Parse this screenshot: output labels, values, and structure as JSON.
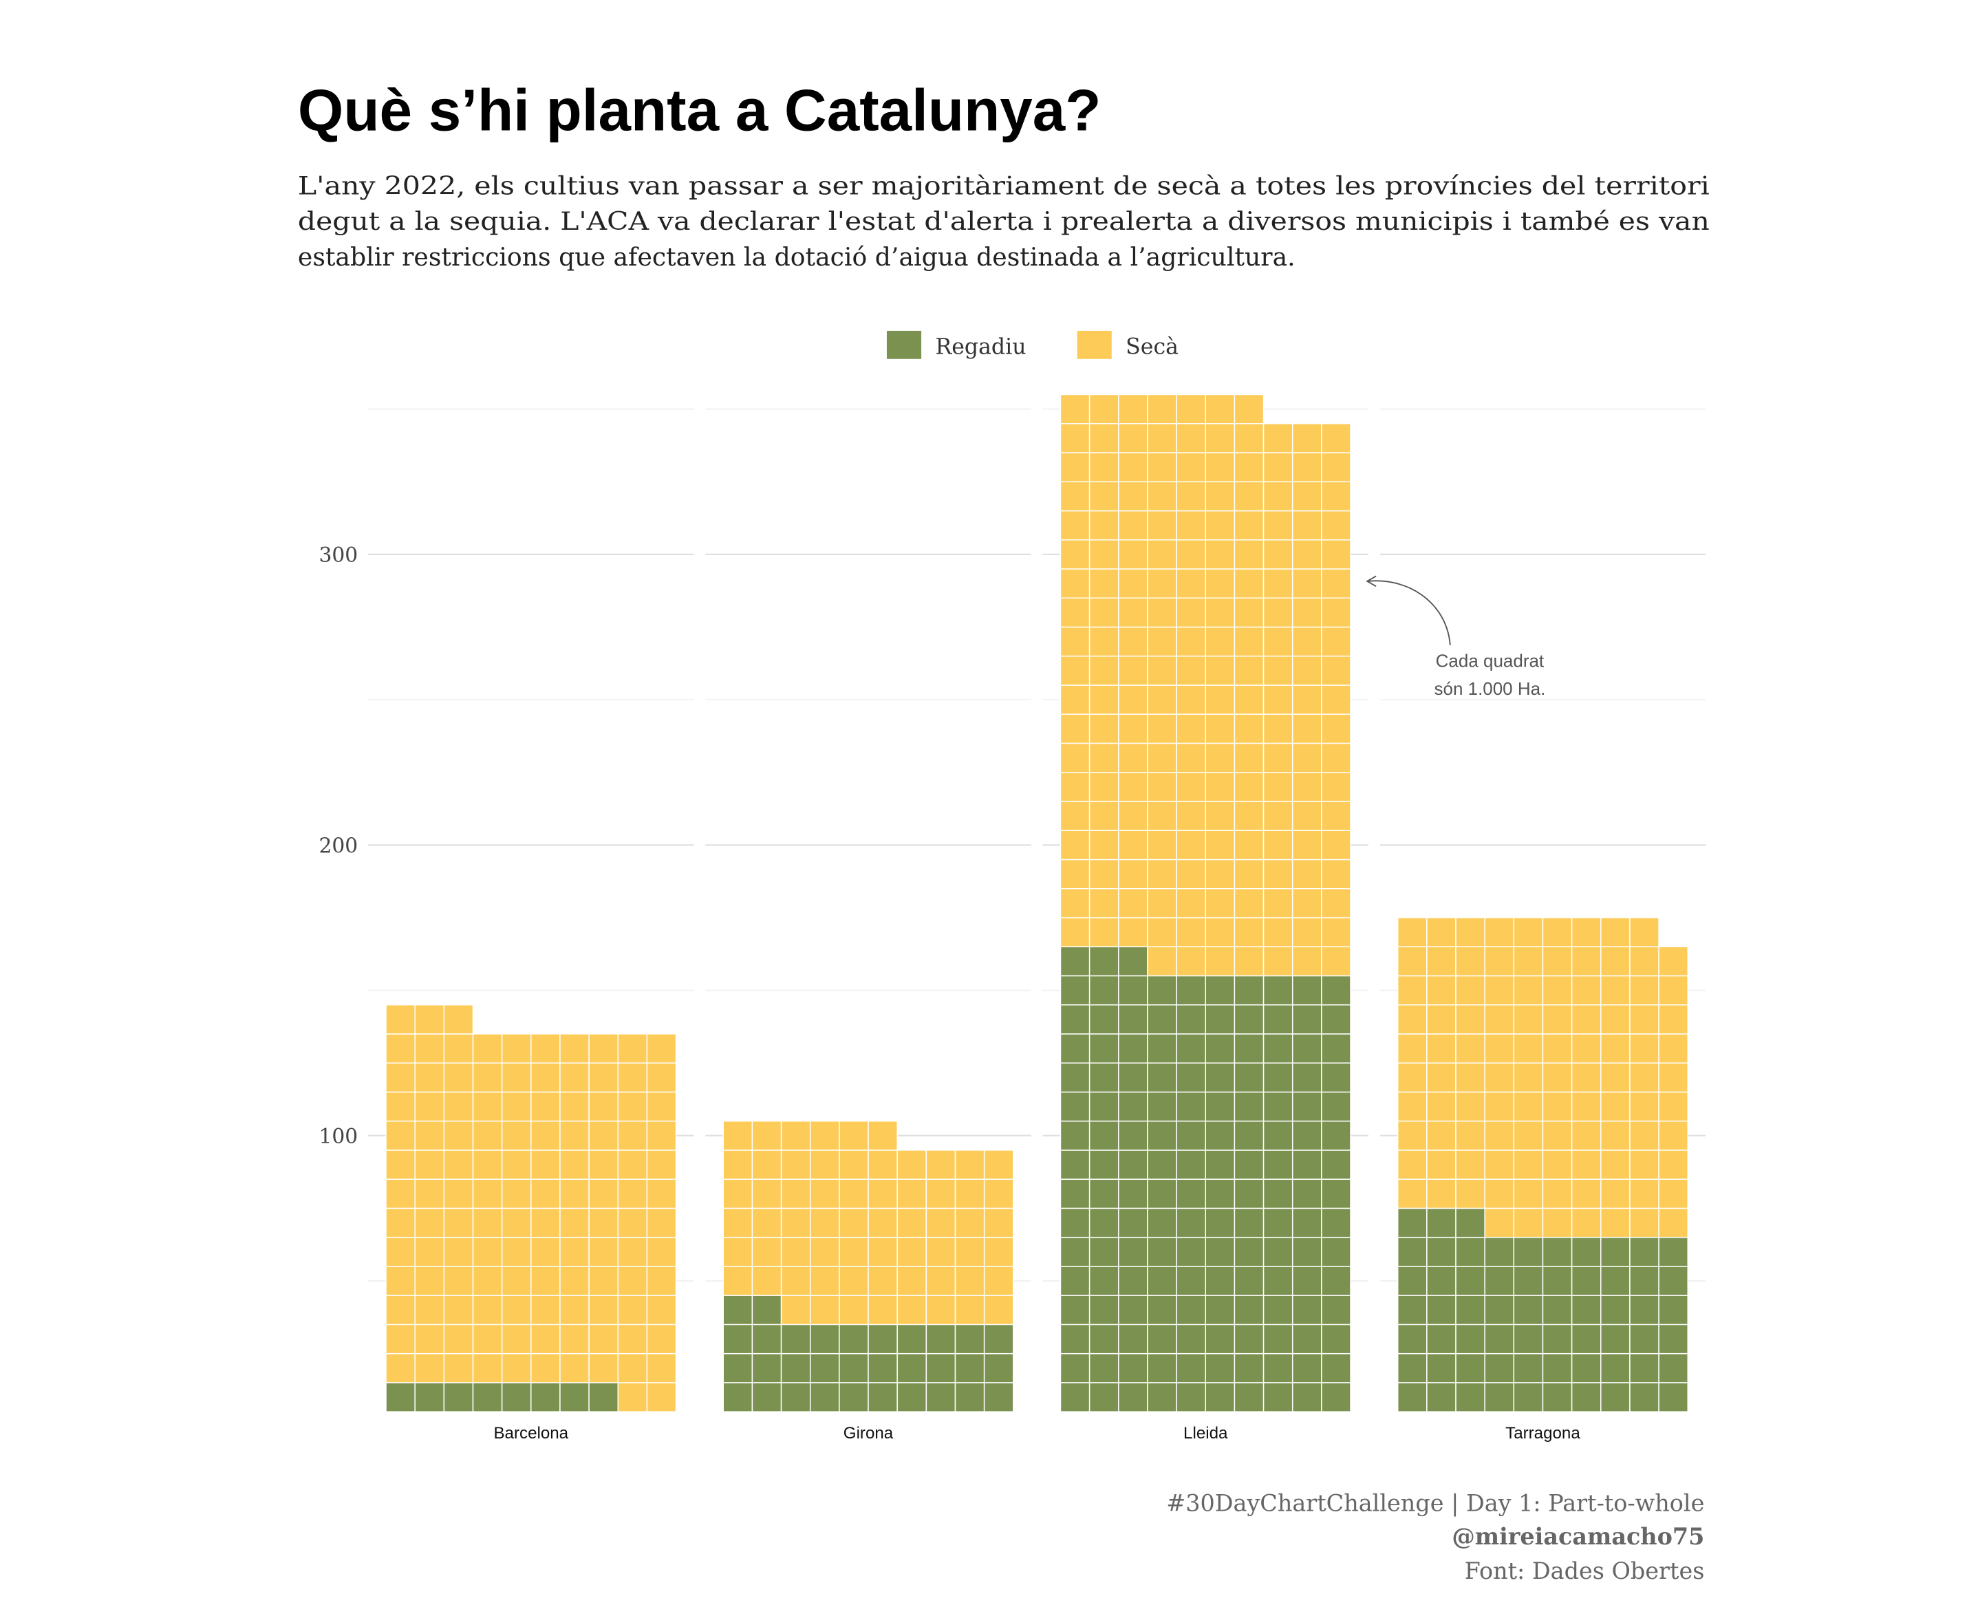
{
  "chart_data": {
    "type": "waffle",
    "title": "Què s’hi planta a Catalunya?",
    "subtitle": [
      "L'any 2022, els cultius van passar a ser majoritàriament de secà a totes les províncies del territori",
      "degut a la sequia. L'ACA va declarar l'estat d'alerta i prealerta a diversos municipis i també es van",
      "establir restriccions que afectaven la dotació d’aigua destinada a l’agricultura."
    ],
    "categories": [
      "Barcelona",
      "Girona",
      "Lleida",
      "Tarragona"
    ],
    "series": [
      {
        "name": "Regadiu",
        "color": "#7b9150",
        "values": [
          8,
          32,
          153,
          63
        ]
      },
      {
        "name": "Secà",
        "color": "#fdcb58",
        "values": [
          125,
          64,
          194,
          106
        ]
      }
    ],
    "ylim": [
      0,
      355
    ],
    "yticks": [
      100,
      200,
      300
    ],
    "minor_yticks": [
      50,
      150,
      250,
      350
    ],
    "grid": true,
    "legend": "top",
    "annotation": [
      "Cada quadrat",
      "són 1.000 Ha."
    ],
    "caption": [
      "#30DayChartChallenge | Day 1: Part-to-whole",
      "@mireiacamacho75",
      "Font: Dades Obertes"
    ]
  }
}
